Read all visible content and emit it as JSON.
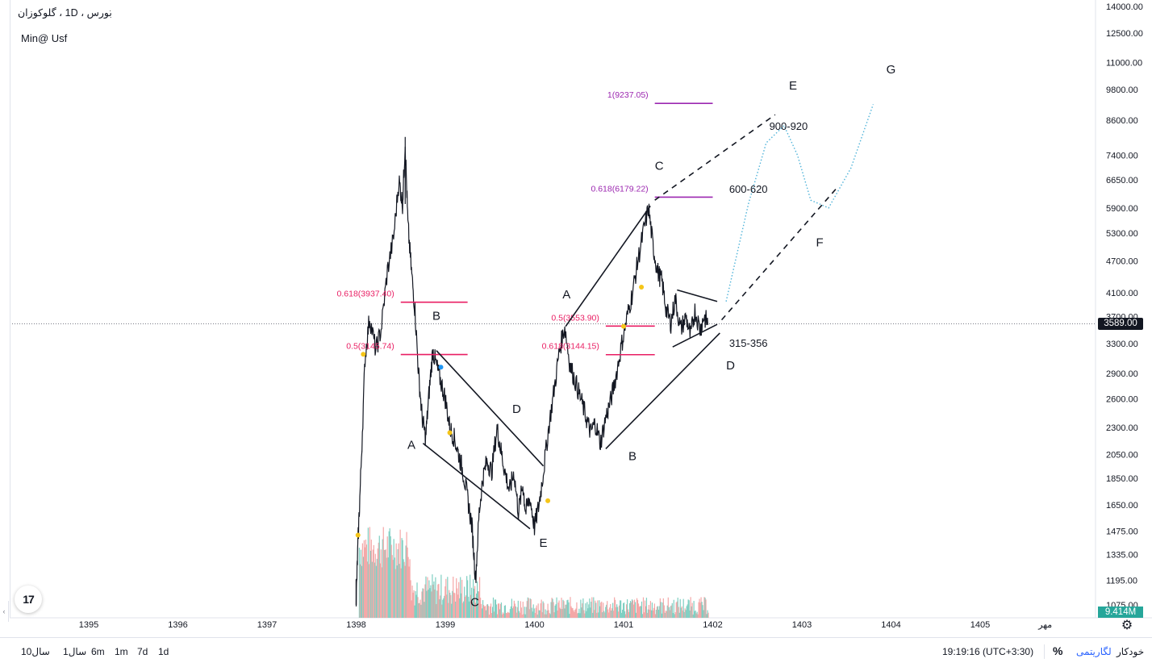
{
  "header": {
    "symbol": "بورس ، 1D ، گلوکوزان",
    "subtitle": "Min@ Usf"
  },
  "price_axis": {
    "ticks": [
      "14000.00",
      "12500.00",
      "11000.00",
      "9800.00",
      "8600.00",
      "7400.00",
      "6650.00",
      "5900.00",
      "5300.00",
      "4700.00",
      "4100.00",
      "3700.00",
      "3300.00",
      "2900.00",
      "2600.00",
      "2300.00",
      "2050.00",
      "1850.00",
      "1650.00",
      "1475.00",
      "1335.00",
      "1195.00",
      "1075.00"
    ],
    "last_price": "3589.00",
    "volume_label": "9.414M"
  },
  "time_axis": {
    "labels": [
      "1395",
      "1396",
      "1397",
      "1398",
      "1399",
      "1400",
      "1401",
      "1402",
      "1403",
      "1404",
      "1405",
      "مهر"
    ]
  },
  "bottom_bar": {
    "ranges": [
      "10سال",
      "1سال",
      "6m",
      "1m",
      "7d",
      "1d"
    ],
    "clock": "19:19:16 (UTC+3:30)",
    "percent": "%",
    "log": "لگاریتمی",
    "auto": "خودکار"
  },
  "colors": {
    "candles": "#131722",
    "fib_pink": "#e91e63",
    "fib_purple": "#9c27b0",
    "projection": "#4fb3d9",
    "vol_up": "#7fcfc2",
    "vol_down": "#f4a7a7",
    "marker": "#f5c518",
    "marker_blue": "#2196f3"
  },
  "chart_data": {
    "type": "line",
    "scale": "log",
    "ylim": [
      1075,
      14000
    ],
    "x_ticks": [
      "1395",
      "1396",
      "1397",
      "1398",
      "1399",
      "1400",
      "1401",
      "1402",
      "1403",
      "1404",
      "1405"
    ],
    "series_price": [
      {
        "t": 1398.0,
        "p": 1100
      },
      {
        "t": 1398.02,
        "p": 1400
      },
      {
        "t": 1398.05,
        "p": 1850
      },
      {
        "t": 1398.1,
        "p": 3100
      },
      {
        "t": 1398.15,
        "p": 3700
      },
      {
        "t": 1398.22,
        "p": 3200
      },
      {
        "t": 1398.28,
        "p": 3500
      },
      {
        "t": 1398.35,
        "p": 4500
      },
      {
        "t": 1398.42,
        "p": 5200
      },
      {
        "t": 1398.48,
        "p": 6650
      },
      {
        "t": 1398.52,
        "p": 6000
      },
      {
        "t": 1398.55,
        "p": 7800
      },
      {
        "t": 1398.58,
        "p": 5500
      },
      {
        "t": 1398.62,
        "p": 4500
      },
      {
        "t": 1398.66,
        "p": 3800
      },
      {
        "t": 1398.7,
        "p": 2900
      },
      {
        "t": 1398.74,
        "p": 2400
      },
      {
        "t": 1398.78,
        "p": 2200
      },
      {
        "t": 1398.82,
        "p": 2700
      },
      {
        "t": 1398.86,
        "p": 3200
      },
      {
        "t": 1398.9,
        "p": 3000
      },
      {
        "t": 1398.95,
        "p": 2800
      },
      {
        "t": 1399.0,
        "p": 2600
      },
      {
        "t": 1399.05,
        "p": 2300
      },
      {
        "t": 1399.1,
        "p": 2200
      },
      {
        "t": 1399.15,
        "p": 2050
      },
      {
        "t": 1399.2,
        "p": 1900
      },
      {
        "t": 1399.25,
        "p": 1700
      },
      {
        "t": 1399.3,
        "p": 1500
      },
      {
        "t": 1399.34,
        "p": 1200
      },
      {
        "t": 1399.38,
        "p": 1600
      },
      {
        "t": 1399.42,
        "p": 1850
      },
      {
        "t": 1399.47,
        "p": 2000
      },
      {
        "t": 1399.52,
        "p": 1900
      },
      {
        "t": 1399.58,
        "p": 2300
      },
      {
        "t": 1399.62,
        "p": 2100
      },
      {
        "t": 1399.67,
        "p": 1900
      },
      {
        "t": 1399.72,
        "p": 1750
      },
      {
        "t": 1399.77,
        "p": 1900
      },
      {
        "t": 1399.82,
        "p": 1600
      },
      {
        "t": 1399.87,
        "p": 1800
      },
      {
        "t": 1399.9,
        "p": 1600
      },
      {
        "t": 1399.95,
        "p": 1700
      },
      {
        "t": 1400.0,
        "p": 1500
      },
      {
        "t": 1400.05,
        "p": 1650
      },
      {
        "t": 1400.1,
        "p": 1900
      },
      {
        "t": 1400.16,
        "p": 2300
      },
      {
        "t": 1400.22,
        "p": 2700
      },
      {
        "t": 1400.28,
        "p": 3200
      },
      {
        "t": 1400.34,
        "p": 3550
      },
      {
        "t": 1400.4,
        "p": 3000
      },
      {
        "t": 1400.46,
        "p": 2800
      },
      {
        "t": 1400.52,
        "p": 2600
      },
      {
        "t": 1400.58,
        "p": 2400
      },
      {
        "t": 1400.63,
        "p": 2250
      },
      {
        "t": 1400.68,
        "p": 2350
      },
      {
        "t": 1400.74,
        "p": 2150
      },
      {
        "t": 1400.8,
        "p": 2400
      },
      {
        "t": 1400.86,
        "p": 2600
      },
      {
        "t": 1400.92,
        "p": 2900
      },
      {
        "t": 1400.98,
        "p": 3300
      },
      {
        "t": 1401.04,
        "p": 3700
      },
      {
        "t": 1401.1,
        "p": 4100
      },
      {
        "t": 1401.16,
        "p": 4700
      },
      {
        "t": 1401.22,
        "p": 5300
      },
      {
        "t": 1401.28,
        "p": 5900
      },
      {
        "t": 1401.33,
        "p": 5000
      },
      {
        "t": 1401.38,
        "p": 4500
      },
      {
        "t": 1401.43,
        "p": 4300
      },
      {
        "t": 1401.48,
        "p": 3800
      },
      {
        "t": 1401.53,
        "p": 3600
      },
      {
        "t": 1401.58,
        "p": 4000
      },
      {
        "t": 1401.64,
        "p": 3500
      },
      {
        "t": 1401.7,
        "p": 3700
      },
      {
        "t": 1401.75,
        "p": 3400
      },
      {
        "t": 1401.8,
        "p": 3800
      },
      {
        "t": 1401.86,
        "p": 3500
      },
      {
        "t": 1401.9,
        "p": 3700
      },
      {
        "t": 1401.95,
        "p": 3589
      }
    ],
    "annotations": [
      {
        "text": "A",
        "t": 1398.62,
        "p": 2100
      },
      {
        "text": "B",
        "t": 1398.9,
        "p": 3650
      },
      {
        "text": "C",
        "t": 1399.33,
        "p": 1070
      },
      {
        "text": "D",
        "t": 1399.8,
        "p": 2450
      },
      {
        "text": "E",
        "t": 1400.1,
        "p": 1380
      },
      {
        "text": "A",
        "t": 1400.36,
        "p": 4000
      },
      {
        "text": "B",
        "t": 1401.1,
        "p": 2000
      },
      {
        "text": "C",
        "t": 1401.4,
        "p": 6950
      },
      {
        "text": "D",
        "t": 1402.2,
        "p": 2950
      },
      {
        "text": "E",
        "t": 1402.9,
        "p": 9800
      },
      {
        "text": "F",
        "t": 1403.2,
        "p": 5000
      },
      {
        "text": "G",
        "t": 1404.0,
        "p": 10500
      },
      {
        "text": "900-920",
        "t": 1402.85,
        "p": 8250
      },
      {
        "text": "600-620",
        "t": 1402.4,
        "p": 6300
      },
      {
        "text": "315-356",
        "t": 1402.4,
        "p": 3250
      }
    ],
    "fib_levels": [
      {
        "label": "0.618(3937.40)",
        "t_from": 1398.5,
        "t_to": 1399.25,
        "p": 3937.4,
        "color": "pink"
      },
      {
        "label": "0.5(3145.74)",
        "t_from": 1398.5,
        "t_to": 1399.25,
        "p": 3145.74,
        "color": "pink"
      },
      {
        "label": "0.5(3553.90)",
        "t_from": 1400.8,
        "t_to": 1401.35,
        "p": 3553.9,
        "color": "pink"
      },
      {
        "label": "0.618(3144.15)",
        "t_from": 1400.8,
        "t_to": 1401.35,
        "p": 3144.15,
        "color": "pink"
      },
      {
        "label": "0.618(6179.22)",
        "t_from": 1401.35,
        "t_to": 1402.0,
        "p": 6179.22,
        "color": "purple"
      },
      {
        "label": "1(9237.05)",
        "t_from": 1401.35,
        "t_to": 1402.0,
        "p": 9237.05,
        "color": "purple"
      }
    ],
    "volume_ylim": [
      0,
      10
    ],
    "last_volume": 9.414
  }
}
